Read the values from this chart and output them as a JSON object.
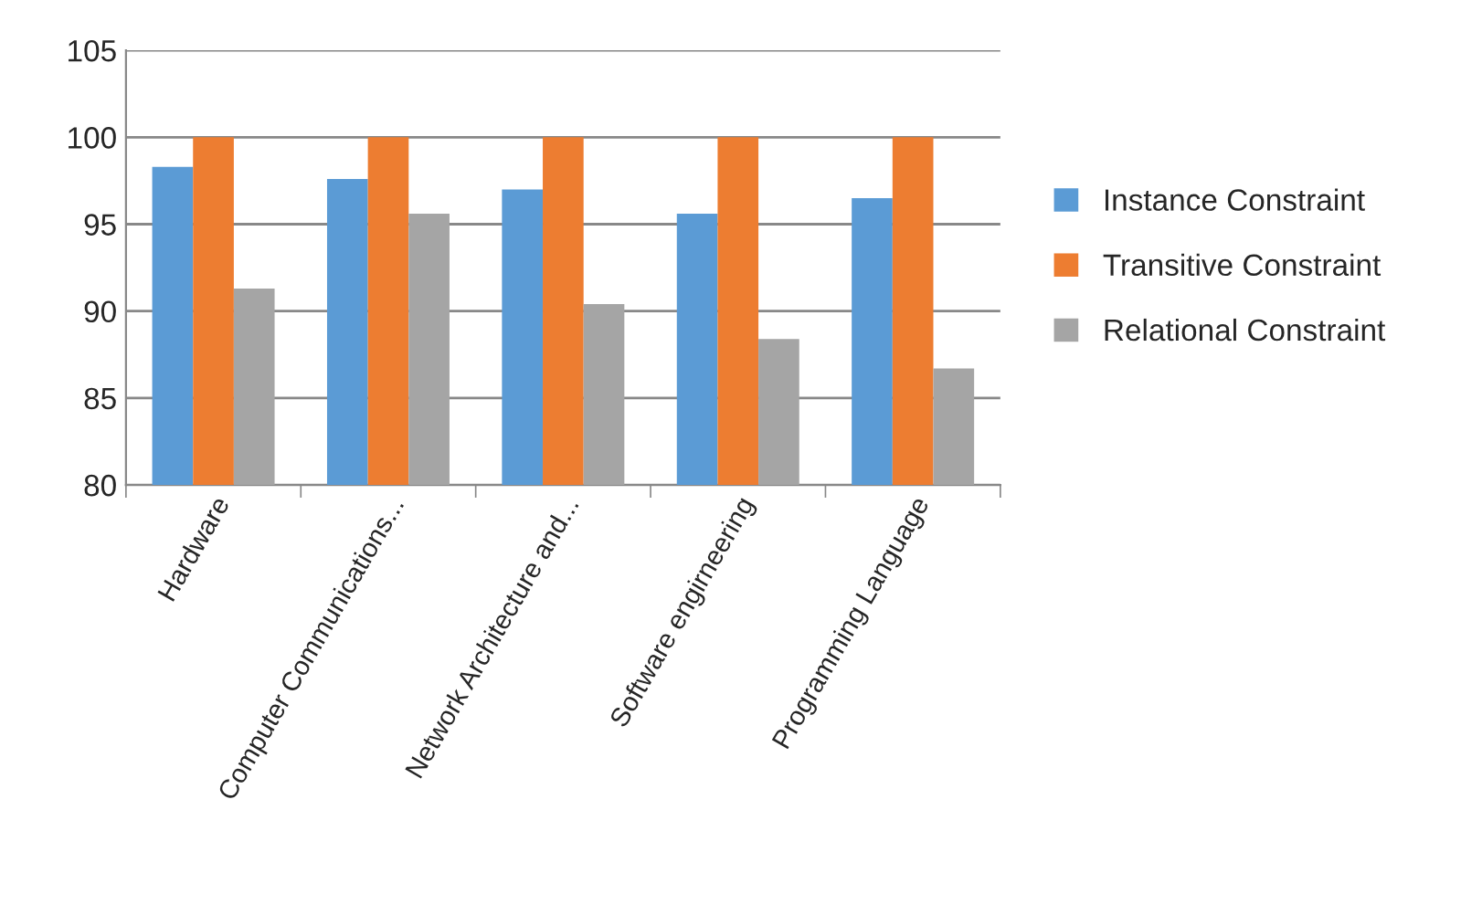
{
  "chart_data": {
    "type": "bar",
    "categories": [
      "Hardware",
      "Computer Communications...",
      "Network Architecture and...",
      "Software engirneering",
      "Programming Language"
    ],
    "series": [
      {
        "name": "Instance Constraint",
        "color": "#5b9bd5",
        "values": [
          98.3,
          97.6,
          97.0,
          95.6,
          96.5
        ]
      },
      {
        "name": "Transitive Constraint",
        "color": "#ed7d31",
        "values": [
          100,
          100,
          100,
          100,
          100
        ]
      },
      {
        "name": "Relational Constraint",
        "color": "#a5a5a5",
        "values": [
          91.3,
          95.6,
          90.4,
          88.4,
          86.7
        ]
      }
    ],
    "ylim": [
      80,
      105
    ],
    "yticks": [
      80,
      85,
      90,
      95,
      100,
      105
    ],
    "grid": "y",
    "legend": "right"
  }
}
